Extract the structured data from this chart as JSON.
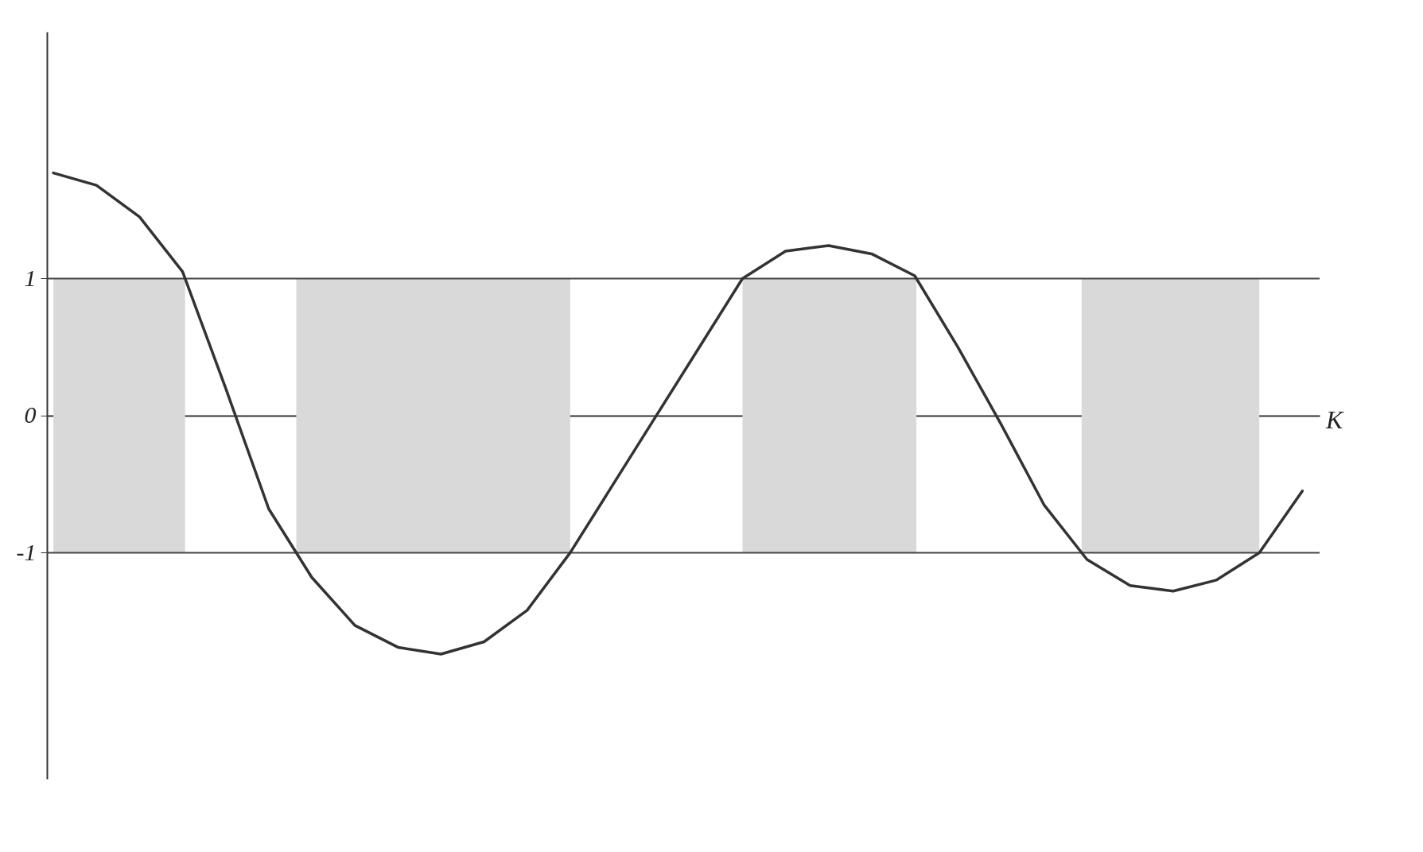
{
  "chart_data": {
    "type": "line",
    "xlabel": "K",
    "categories": [
      null,
      null,
      null,
      null,
      null,
      null,
      null,
      null,
      null,
      null,
      null,
      null,
      null,
      null,
      null,
      null,
      null,
      null,
      null,
      null,
      null,
      null,
      null,
      null,
      null,
      null,
      null,
      null,
      null,
      null
    ],
    "series": [
      {
        "color": "#333333",
        "values": [
          1.77,
          1.68,
          1.45,
          1.05,
          0.2,
          -0.68,
          -1.18,
          -1.53,
          -1.69,
          -1.74,
          -1.65,
          -1.42,
          -1.0,
          -0.5,
          0,
          0.5,
          1.0,
          1.2,
          1.24,
          1.18,
          1.02,
          0.5,
          -0.06,
          -0.65,
          -1.05,
          -1.24,
          -1.28,
          -1.2,
          -1.0,
          -0.55
        ]
      }
    ],
    "ylim": [
      -2.65,
      2.8
    ],
    "yticks": [
      -1,
      0,
      1
    ],
    "tick_labels": "y",
    "grid": false,
    "marker": "none",
    "line_style": "solid",
    "ref_lines": [
      {
        "axis": "y",
        "value": 1,
        "color": "#444444"
      },
      {
        "axis": "y",
        "value": -1,
        "color": "#444444"
      }
    ]
  }
}
